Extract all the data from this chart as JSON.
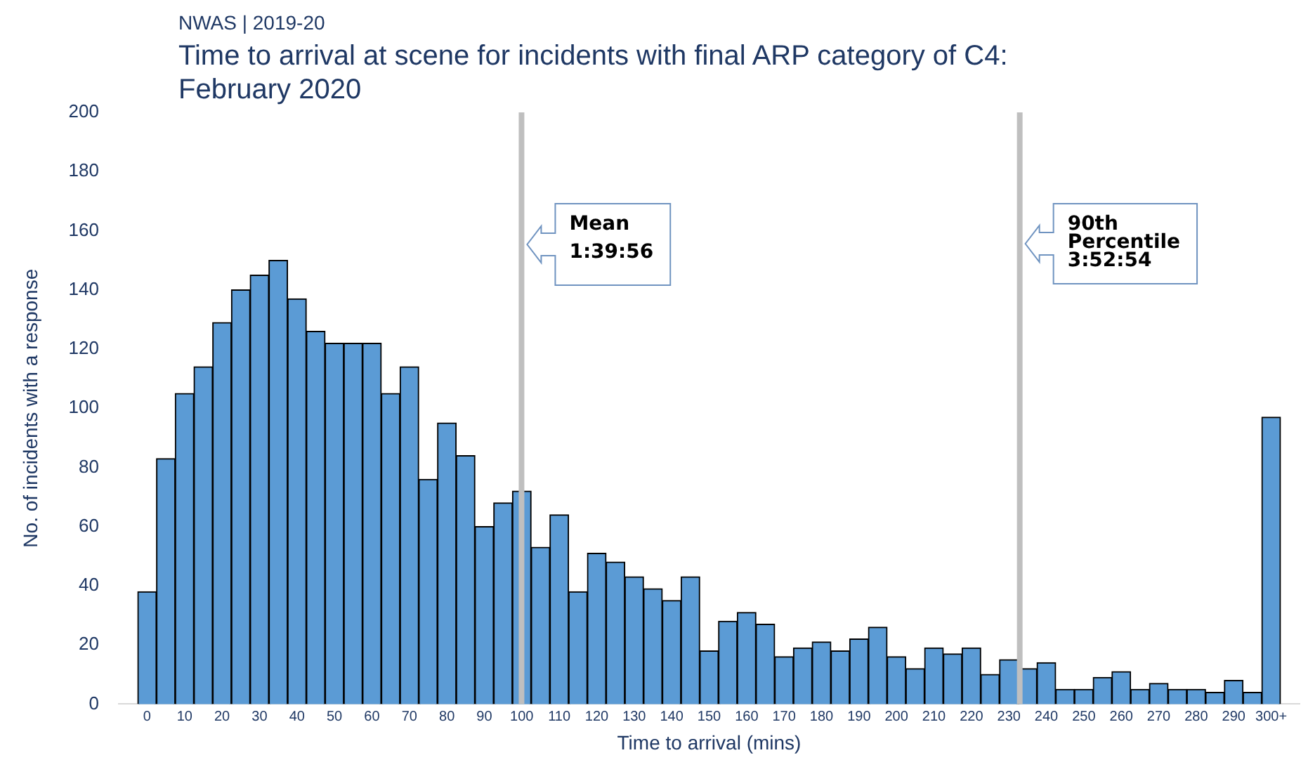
{
  "chart_data": {
    "type": "bar",
    "subtitle": "NWAS | 2019-20",
    "title": "Time to arrival at scene for incidents with final ARP category of C4: February 2020",
    "xlabel": "Time to arrival (mins)",
    "ylabel": "No. of incidents with a response",
    "x": [
      0,
      5,
      10,
      15,
      20,
      25,
      30,
      35,
      40,
      45,
      50,
      55,
      60,
      65,
      70,
      75,
      80,
      85,
      90,
      95,
      100,
      105,
      110,
      115,
      120,
      125,
      130,
      135,
      140,
      145,
      150,
      155,
      160,
      165,
      170,
      175,
      180,
      185,
      190,
      195,
      200,
      205,
      210,
      215,
      220,
      225,
      230,
      235,
      240,
      245,
      250,
      255,
      260,
      265,
      270,
      275,
      280,
      285,
      290,
      295,
      300
    ],
    "values": [
      38,
      83,
      105,
      114,
      129,
      140,
      145,
      150,
      137,
      126,
      122,
      122,
      122,
      105,
      114,
      76,
      95,
      84,
      60,
      68,
      72,
      53,
      64,
      38,
      51,
      48,
      43,
      39,
      35,
      43,
      18,
      28,
      31,
      27,
      16,
      19,
      21,
      18,
      22,
      26,
      16,
      12,
      19,
      17,
      19,
      10,
      15,
      12,
      14,
      5,
      5,
      9,
      11,
      5,
      7,
      5,
      5,
      4,
      8,
      4,
      97
    ],
    "color": "#5b9bd5",
    "xlim": [
      -2.5,
      302.5
    ],
    "xticks": [
      0,
      10,
      20,
      30,
      40,
      50,
      60,
      70,
      80,
      90,
      100,
      110,
      120,
      130,
      140,
      150,
      160,
      170,
      180,
      190,
      200,
      210,
      220,
      230,
      240,
      250,
      260,
      270,
      280,
      290,
      {
        "value": 300,
        "label": "300+"
      }
    ],
    "ylim": [
      0,
      200
    ],
    "yticks": [
      0,
      20,
      40,
      60,
      80,
      100,
      120,
      140,
      160,
      180,
      200
    ],
    "grid": false,
    "legend": false,
    "annotations": [
      "Mean\n1:39:56",
      "90th\nPercentile\n3:52:54"
    ],
    "ref_lines": [
      {
        "axis": "x",
        "value": 99.93,
        "color": "#bfbfbf"
      },
      {
        "axis": "x",
        "value": 232.9,
        "color": "#bfbfbf"
      }
    ]
  }
}
